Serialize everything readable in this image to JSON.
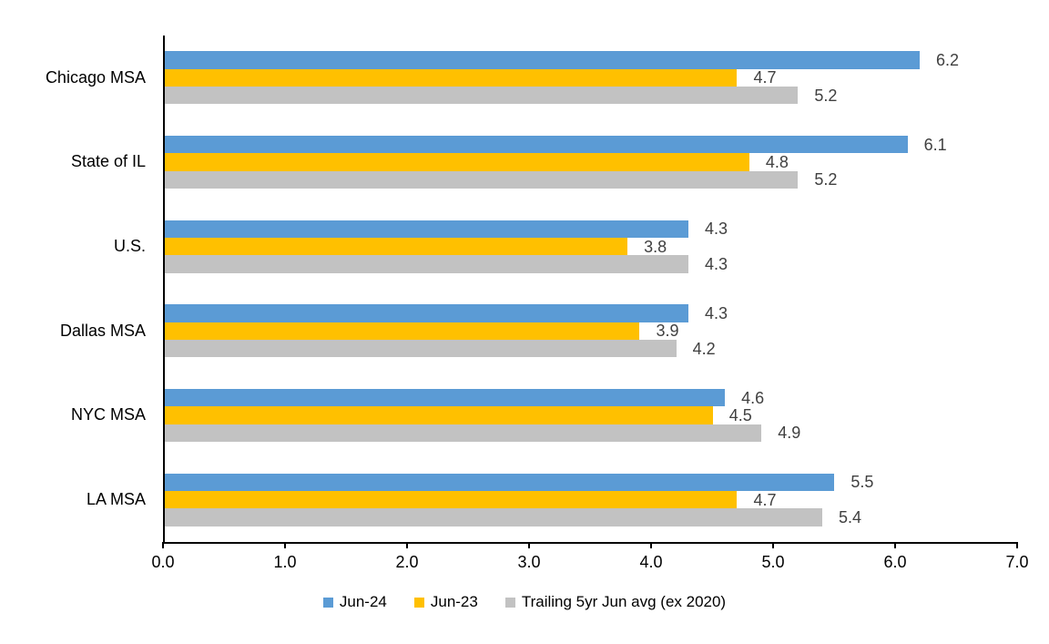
{
  "page": {
    "background": "#ffffff",
    "axis_color": "#000000",
    "data_label_color": "#404040"
  },
  "chart_data": {
    "type": "bar",
    "orientation": "horizontal",
    "title": "",
    "xlabel": "",
    "ylabel": "",
    "grid": false,
    "data_labels": true,
    "legend_position": "bottom",
    "xlim": [
      0,
      7
    ],
    "x_ticks": [
      "0.0",
      "1.0",
      "2.0",
      "3.0",
      "4.0",
      "5.0",
      "6.0",
      "7.0"
    ],
    "categories": [
      "Chicago MSA",
      "State of IL",
      "U.S.",
      "Dallas MSA",
      "NYC MSA",
      "LA MSA"
    ],
    "series": [
      {
        "name": "Jun-24",
        "color": "#5B9BD5",
        "values": [
          6.2,
          6.1,
          4.3,
          4.3,
          4.6,
          5.5
        ]
      },
      {
        "name": "Jun-23",
        "color": "#FFC000",
        "values": [
          4.7,
          4.8,
          3.8,
          3.9,
          4.5,
          4.7
        ]
      },
      {
        "name": "Trailing 5yr Jun avg (ex 2020)",
        "color": "#C2C2C2",
        "values": [
          5.2,
          5.2,
          4.3,
          4.2,
          4.9,
          5.4
        ]
      }
    ]
  }
}
